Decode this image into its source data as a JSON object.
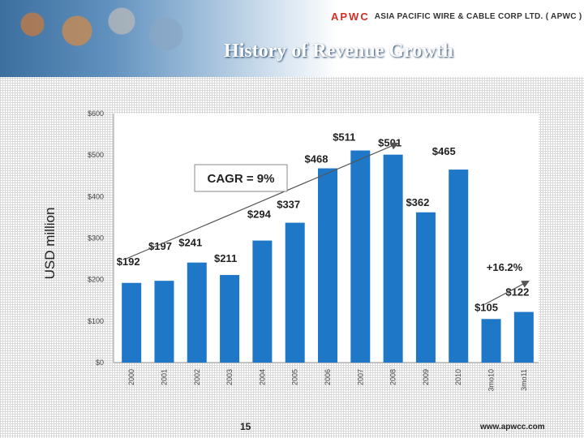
{
  "header": {
    "company_mark": "APWC",
    "company_name": "ASIA PACIFIC WIRE & CABLE CORP LTD. ( APWC )",
    "slide_title": "History of Revenue Growth"
  },
  "footer": {
    "page_number": "15",
    "url": "www.apwcc.com"
  },
  "colors": {
    "bar": "#1f77c8",
    "accent": "#d62e25"
  },
  "chart_data": {
    "type": "bar",
    "title": "History of Revenue Growth",
    "ylabel": "USD million",
    "xlabel": "",
    "ylim": [
      0,
      600
    ],
    "yticks": [
      0,
      100,
      200,
      300,
      400,
      500,
      600
    ],
    "ytick_labels": [
      "$0",
      "$100",
      "$200",
      "$300",
      "$400",
      "$500",
      "$600"
    ],
    "categories": [
      "2000",
      "2001",
      "2002",
      "2003",
      "2004",
      "2005",
      "2006",
      "2007",
      "2008",
      "2009",
      "2010",
      "3mo10",
      "3mo11"
    ],
    "values": [
      192,
      197,
      241,
      211,
      294,
      337,
      468,
      511,
      501,
      362,
      465,
      105,
      122
    ],
    "data_labels": [
      "$192",
      "$197",
      "$241",
      "$211",
      "$294",
      "$337",
      "$468",
      "$511",
      "$501",
      "$362",
      "$465",
      "$105",
      "$122"
    ],
    "annotations": {
      "cagr": "CAGR = 9%",
      "quarter_growth": "+16.2%"
    }
  }
}
